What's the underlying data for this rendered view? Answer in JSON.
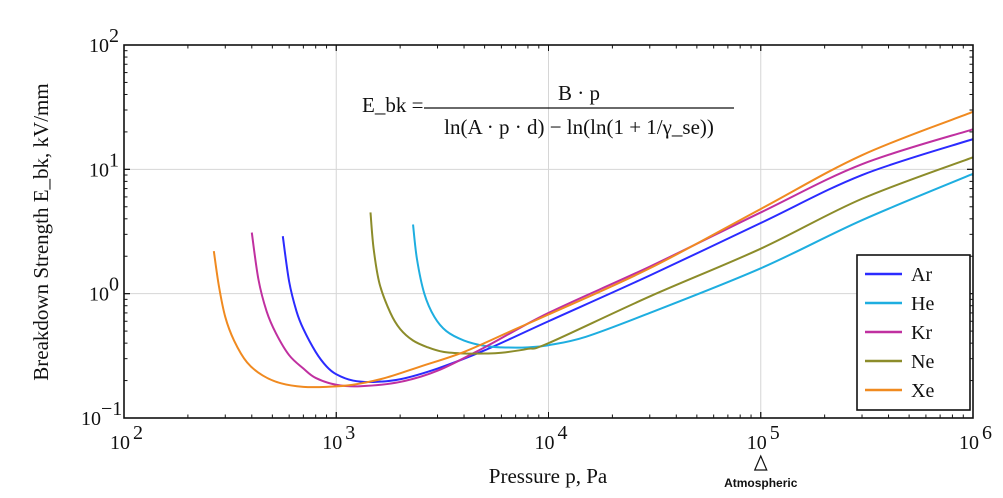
{
  "chart_data": {
    "type": "line",
    "xscale": "log",
    "yscale": "log",
    "xlim": [
      100,
      1000000
    ],
    "ylim": [
      0.1,
      100
    ],
    "grid": true,
    "xlabel": "Pressure p, Pa",
    "ylabel": "Breakdown Strength E_bk, kV/mm",
    "x_ticks": [
      {
        "base": "10",
        "exp": "2",
        "value": 100
      },
      {
        "base": "10",
        "exp": "3",
        "value": 1000
      },
      {
        "base": "10",
        "exp": "4",
        "value": 10000
      },
      {
        "base": "10",
        "exp": "5",
        "value": 100000
      },
      {
        "base": "10",
        "exp": "6",
        "value": 1000000
      }
    ],
    "y_ticks": [
      {
        "base": "10",
        "exp": "−1",
        "value": 0.1
      },
      {
        "base": "10",
        "exp": "0",
        "value": 1
      },
      {
        "base": "10",
        "exp": "1",
        "value": 10
      },
      {
        "base": "10",
        "exp": "2",
        "value": 100
      }
    ],
    "formula": {
      "lhs": "E_bk =",
      "numerator": "B · p",
      "denominator": "ln(A · p · d) − ln(ln(1 + 1/γ_se))"
    },
    "annotation": {
      "label": "Atmospheric",
      "x": 100000
    },
    "legend_position": "bottom-right",
    "series": [
      {
        "name": "Ar",
        "color": "#2b2bff",
        "x": [
          560,
          600,
          650,
          700,
          800,
          900,
          1000,
          1200,
          1500,
          2000,
          3000,
          5000,
          10000,
          30000,
          100000,
          300000,
          1000000
        ],
        "y": [
          2.9,
          1.25,
          0.72,
          0.52,
          0.34,
          0.26,
          0.225,
          0.2,
          0.195,
          0.205,
          0.25,
          0.35,
          0.6,
          1.4,
          3.7,
          9.0,
          17.5
        ]
      },
      {
        "name": "He",
        "color": "#1eaee0",
        "x": [
          2300,
          2400,
          2600,
          2900,
          3300,
          4000,
          5000,
          6000,
          8000,
          10000,
          15000,
          30000,
          100000,
          300000,
          1000000
        ],
        "y": [
          3.6,
          1.9,
          1.0,
          0.65,
          0.5,
          0.42,
          0.38,
          0.37,
          0.37,
          0.385,
          0.45,
          0.7,
          1.6,
          3.9,
          9.2
        ]
      },
      {
        "name": "Kr",
        "color": "#c030a0",
        "x": [
          400,
          430,
          470,
          520,
          600,
          700,
          800,
          1000,
          1300,
          2000,
          3000,
          5000,
          10000,
          30000,
          100000,
          300000,
          1000000
        ],
        "y": [
          3.1,
          1.3,
          0.72,
          0.48,
          0.32,
          0.25,
          0.21,
          0.185,
          0.18,
          0.195,
          0.24,
          0.37,
          0.7,
          1.65,
          4.5,
          11.0,
          21.0
        ]
      },
      {
        "name": "Ne",
        "color": "#8c8c2a",
        "x": [
          1450,
          1500,
          1600,
          1800,
          2000,
          2300,
          2700,
          3200,
          4000,
          5000,
          6000,
          8000,
          10000,
          30000,
          100000,
          300000,
          1000000
        ],
        "y": [
          4.5,
          2.3,
          1.2,
          0.7,
          0.52,
          0.42,
          0.37,
          0.34,
          0.33,
          0.33,
          0.335,
          0.36,
          0.4,
          0.95,
          2.3,
          5.8,
          12.5
        ]
      },
      {
        "name": "Xe",
        "color": "#f08a20",
        "x": [
          265,
          280,
          300,
          330,
          380,
          450,
          550,
          700,
          900,
          1200,
          1700,
          2500,
          4000,
          7000,
          10000,
          30000,
          100000,
          300000,
          1000000
        ],
        "y": [
          2.2,
          1.15,
          0.65,
          0.42,
          0.28,
          0.22,
          0.19,
          0.178,
          0.178,
          0.185,
          0.21,
          0.26,
          0.34,
          0.52,
          0.68,
          1.6,
          4.8,
          13.0,
          29.0
        ]
      }
    ]
  }
}
